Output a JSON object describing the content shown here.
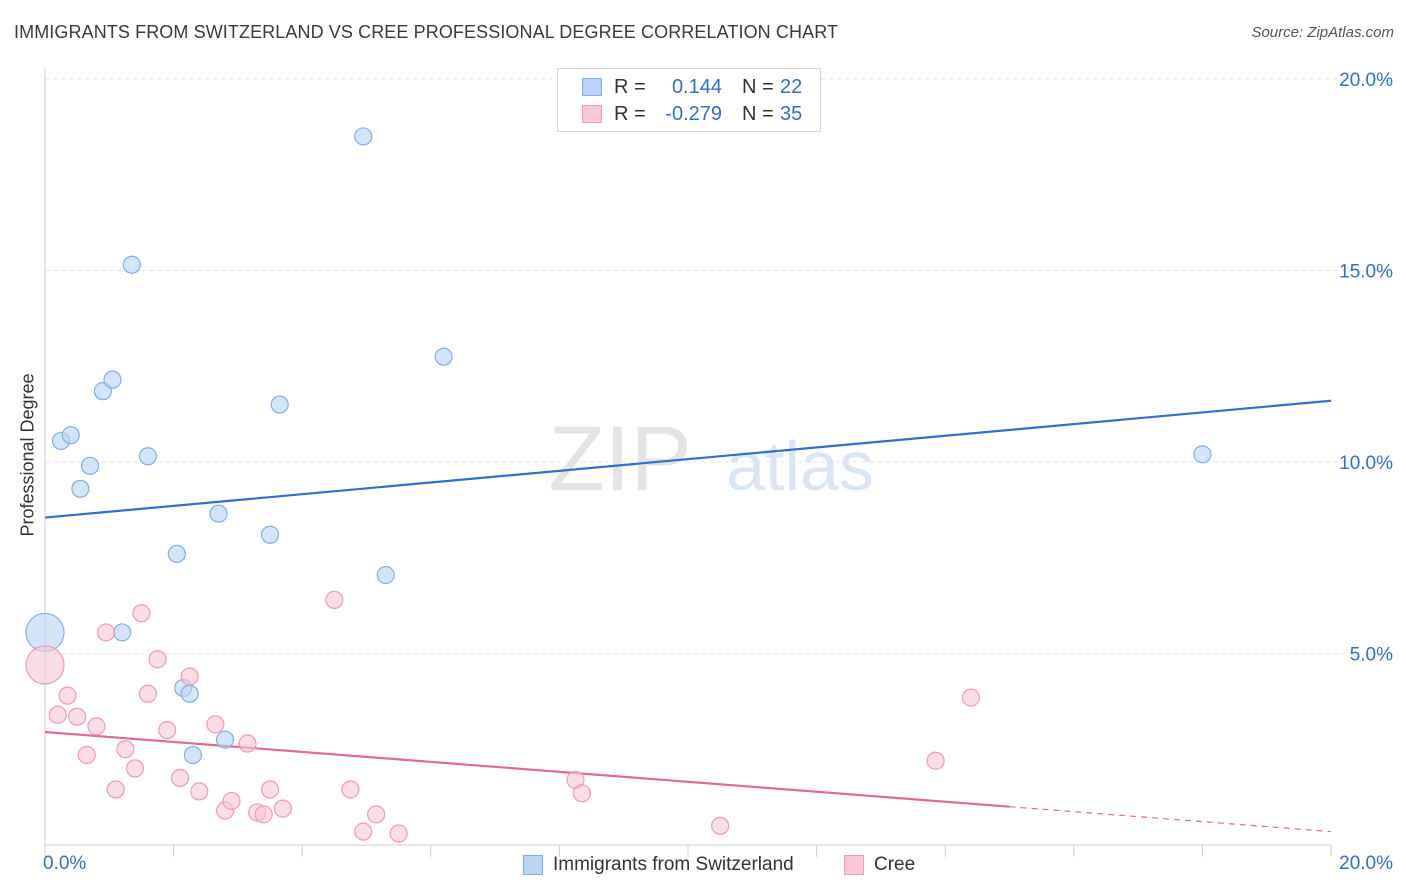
{
  "title": "IMMIGRANTS FROM SWITZERLAND VS CREE PROFESSIONAL DEGREE CORRELATION CHART",
  "source": "Source: ZipAtlas.com",
  "watermark": {
    "zip": "ZIP",
    "atlas": "atlas"
  },
  "legend": {
    "rows": [
      {
        "r_label": "R =",
        "r_value": "0.144",
        "n_label": "N =",
        "n_value": "22",
        "fill": "#b9d3f5",
        "stroke": "#7eaee8"
      },
      {
        "r_label": "R =",
        "r_value": "-0.279",
        "n_label": "N =",
        "n_value": "35",
        "fill": "#f9c7d5",
        "stroke": "#f19ab5"
      }
    ]
  },
  "bottom_legend": [
    {
      "label": "Immigrants from Switzerland",
      "fill": "#b9d3f5",
      "stroke": "#7eaee8"
    },
    {
      "label": "Cree",
      "fill": "#f9c7d5",
      "stroke": "#f19ab5"
    }
  ],
  "chart_data": {
    "type": "scatter",
    "title": "IMMIGRANTS FROM SWITZERLAND VS CREE PROFESSIONAL DEGREE CORRELATION CHART",
    "xlabel": "",
    "ylabel": "Professional Degree",
    "xlim": [
      0,
      20
    ],
    "ylim": [
      0,
      20
    ],
    "x_tick_labels": [
      "0.0%",
      "20.0%"
    ],
    "y_ticks": [
      {
        "value": 5,
        "label": "5.0%"
      },
      {
        "value": 10,
        "label": "10.0%"
      },
      {
        "value": 15,
        "label": "15.0%"
      },
      {
        "value": 20,
        "label": "20.0%"
      }
    ],
    "series": [
      {
        "name": "Immigrants from Switzerland",
        "color": "#2f6fd1",
        "fill": "#b9d3f5",
        "stroke": "#7eaee8",
        "R": 0.144,
        "N": 22,
        "trend": {
          "x": [
            0,
            20
          ],
          "y": [
            8.55,
            11.6
          ]
        },
        "points": [
          {
            "x": 0.0,
            "y": 5.55,
            "big": true
          },
          {
            "x": 0.25,
            "y": 10.55
          },
          {
            "x": 0.4,
            "y": 10.7
          },
          {
            "x": 0.55,
            "y": 9.3
          },
          {
            "x": 0.7,
            "y": 9.9
          },
          {
            "x": 0.9,
            "y": 11.85
          },
          {
            "x": 1.05,
            "y": 12.15
          },
          {
            "x": 1.2,
            "y": 5.55
          },
          {
            "x": 1.35,
            "y": 15.15
          },
          {
            "x": 1.6,
            "y": 10.15
          },
          {
            "x": 2.05,
            "y": 7.6
          },
          {
            "x": 2.15,
            "y": 4.1
          },
          {
            "x": 2.25,
            "y": 3.95
          },
          {
            "x": 2.3,
            "y": 2.35
          },
          {
            "x": 2.7,
            "y": 8.65
          },
          {
            "x": 2.8,
            "y": 2.75
          },
          {
            "x": 3.5,
            "y": 8.1
          },
          {
            "x": 3.65,
            "y": 11.5
          },
          {
            "x": 4.95,
            "y": 18.5
          },
          {
            "x": 5.3,
            "y": 7.05
          },
          {
            "x": 6.2,
            "y": 12.75
          },
          {
            "x": 18.0,
            "y": 10.2
          }
        ]
      },
      {
        "name": "Cree",
        "color": "#e36a92",
        "fill": "#f9c7d5",
        "stroke": "#f19ab5",
        "R": -0.279,
        "N": 35,
        "trend": {
          "x": [
            0,
            15
          ],
          "y": [
            2.95,
            1.0
          ]
        },
        "trend_dashed": {
          "x": [
            15,
            20
          ],
          "y": [
            1.0,
            0.35
          ]
        },
        "points": [
          {
            "x": 0.0,
            "y": 4.7,
            "big": true
          },
          {
            "x": 0.2,
            "y": 3.4
          },
          {
            "x": 0.35,
            "y": 3.9
          },
          {
            "x": 0.5,
            "y": 3.35
          },
          {
            "x": 0.65,
            "y": 2.35
          },
          {
            "x": 0.8,
            "y": 3.1
          },
          {
            "x": 0.95,
            "y": 5.55
          },
          {
            "x": 1.1,
            "y": 1.45
          },
          {
            "x": 1.25,
            "y": 2.5
          },
          {
            "x": 1.4,
            "y": 2.0
          },
          {
            "x": 1.5,
            "y": 6.05
          },
          {
            "x": 1.6,
            "y": 3.95
          },
          {
            "x": 1.75,
            "y": 4.85
          },
          {
            "x": 1.9,
            "y": 3.0
          },
          {
            "x": 2.1,
            "y": 1.75
          },
          {
            "x": 2.25,
            "y": 4.4
          },
          {
            "x": 2.4,
            "y": 1.4
          },
          {
            "x": 2.65,
            "y": 3.15
          },
          {
            "x": 2.8,
            "y": 0.9
          },
          {
            "x": 2.9,
            "y": 1.15
          },
          {
            "x": 3.15,
            "y": 2.65
          },
          {
            "x": 3.3,
            "y": 0.85
          },
          {
            "x": 3.4,
            "y": 0.8
          },
          {
            "x": 3.5,
            "y": 1.45
          },
          {
            "x": 3.7,
            "y": 0.95
          },
          {
            "x": 4.5,
            "y": 6.4
          },
          {
            "x": 4.75,
            "y": 1.45
          },
          {
            "x": 4.95,
            "y": 0.35
          },
          {
            "x": 5.15,
            "y": 0.8
          },
          {
            "x": 5.5,
            "y": 0.3
          },
          {
            "x": 8.25,
            "y": 1.7
          },
          {
            "x": 8.35,
            "y": 1.35
          },
          {
            "x": 10.5,
            "y": 0.5
          },
          {
            "x": 13.85,
            "y": 2.2
          },
          {
            "x": 14.4,
            "y": 3.85
          }
        ]
      }
    ],
    "legend_position": "top-center"
  }
}
